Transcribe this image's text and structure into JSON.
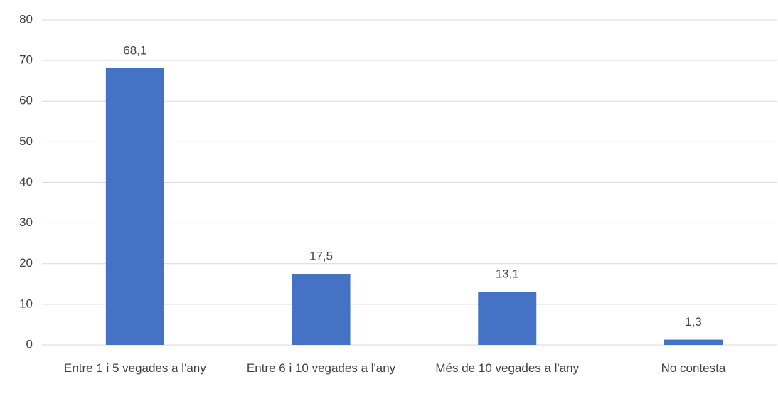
{
  "chart_data": {
    "type": "bar",
    "categories": [
      "Entre 1 i 5 vegades a l'any",
      "Entre 6 i 10 vegades a l'any",
      "Més de 10 vegades a l'any",
      "No contesta"
    ],
    "values": [
      68.1,
      17.5,
      13.1,
      1.3
    ],
    "value_labels": [
      "68,1",
      "17,5",
      "13,1",
      "1,3"
    ],
    "color": "#4472c4",
    "ylim": [
      0,
      80
    ],
    "yticks": [
      0,
      10,
      20,
      30,
      40,
      50,
      60,
      70,
      80
    ],
    "grid": true
  }
}
